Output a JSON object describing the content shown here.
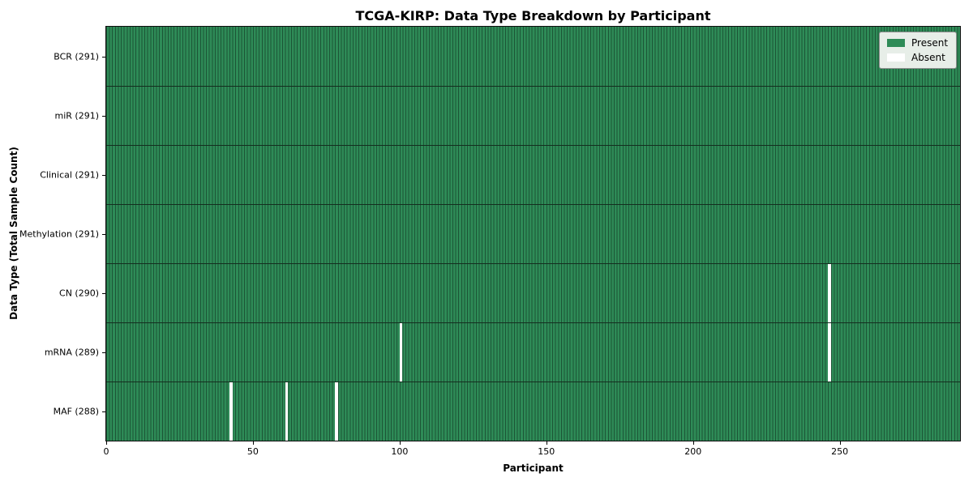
{
  "chart_data": {
    "type": "heatmap",
    "title": "TCGA-KIRP: Data Type Breakdown by Participant",
    "xlabel": "Participant",
    "ylabel": "Data Type (Total Sample Count)",
    "x_ticks": [
      0,
      50,
      100,
      150,
      200,
      250
    ],
    "xlim": [
      0,
      291
    ],
    "n_participants": 291,
    "rows": [
      {
        "label": "BCR (291)",
        "data_type": "BCR",
        "present_count": 291,
        "absent_participants": []
      },
      {
        "label": "miR (291)",
        "data_type": "miR",
        "present_count": 291,
        "absent_participants": []
      },
      {
        "label": "Clinical (291)",
        "data_type": "Clinical",
        "present_count": 291,
        "absent_participants": []
      },
      {
        "label": "Methylation (291)",
        "data_type": "Methylation",
        "present_count": 291,
        "absent_participants": []
      },
      {
        "label": "CN (290)",
        "data_type": "CN",
        "present_count": 290,
        "absent_participants": [
          246
        ]
      },
      {
        "label": "mRNA (289)",
        "data_type": "mRNA",
        "present_count": 289,
        "absent_participants": [
          100,
          246
        ]
      },
      {
        "label": "MAF (288)",
        "data_type": "MAF",
        "present_count": 288,
        "absent_participants": [
          42,
          61,
          78
        ]
      }
    ],
    "legend": {
      "position": "upper right",
      "entries": [
        {
          "label": "Present",
          "color": "#2e8b57"
        },
        {
          "label": "Absent",
          "color": "#ffffff"
        }
      ]
    },
    "colors": {
      "present": "#2e8b57",
      "cell_edge": "#1c5536",
      "row_separator": "#142e1f",
      "absent": "#ffffff",
      "plot_border": "#0e0e0e",
      "legend_background": "#e7eee8",
      "legend_border": "#8f8f8f",
      "text": "#000000"
    },
    "grid": "cell-edges",
    "legend_on": true
  }
}
